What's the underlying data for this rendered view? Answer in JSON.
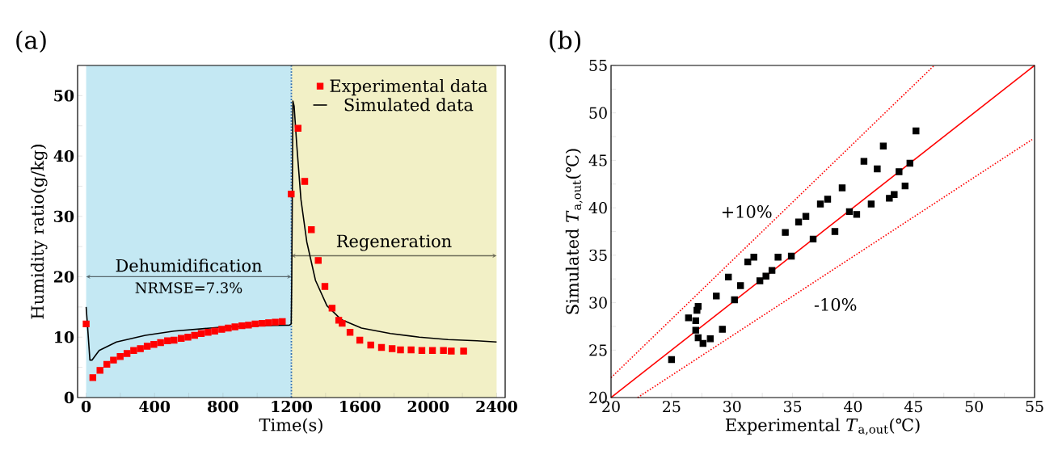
{
  "chart_data": [
    {
      "type": "scatter",
      "title": "(a)",
      "xlabel": "Time(s)",
      "ylabel": "Humidity ratio(g/kg)",
      "xlim": [
        -50,
        2450
      ],
      "ylim": [
        0,
        55
      ],
      "xticks": [
        0,
        {
          "value": 200,
          "label": null
        },
        400,
        {
          "value": 600,
          "label": null
        },
        800,
        {
          "value": 1000,
          "label": null
        },
        1200,
        {
          "value": 1400,
          "label": null
        },
        1600,
        {
          "value": 1800,
          "label": null
        },
        2000,
        {
          "value": 2200,
          "label": null
        },
        2400
      ],
      "yticks": [
        0,
        {
          "value": 5,
          "label": null
        },
        10,
        {
          "value": 15,
          "label": null
        },
        20,
        {
          "value": 25,
          "label": null
        },
        30,
        {
          "value": 35,
          "label": null
        },
        40,
        {
          "value": 45,
          "label": null
        },
        50
      ],
      "legend": "top right",
      "series": [
        {
          "name": "Experimental data",
          "marker": "square",
          "color": "#ff0000",
          "x": [
            0,
            39,
            81,
            121,
            160,
            199,
            239,
            278,
            317,
            357,
            396,
            435,
            476,
            514,
            556,
            595,
            634,
            673,
            713,
            752,
            793,
            831,
            870,
            911,
            949,
            988,
            1029,
            1067,
            1106,
            1147,
            1199,
            1239,
            1278,
            1317,
            1357,
            1396,
            1438,
            1477,
            1497,
            1543,
            1600,
            1664,
            1727,
            1789,
            1838,
            1900,
            1963,
            2025,
            2089,
            2135,
            2207
          ],
          "values": [
            12.2,
            3.3,
            4.5,
            5.5,
            6.2,
            6.8,
            7.3,
            7.8,
            8.1,
            8.5,
            8.8,
            9.1,
            9.4,
            9.5,
            9.8,
            10.0,
            10.3,
            10.6,
            10.8,
            11.0,
            11.3,
            11.5,
            11.7,
            11.9,
            12.0,
            12.2,
            12.3,
            12.4,
            12.5,
            12.6,
            33.7,
            44.6,
            35.8,
            27.8,
            22.7,
            18.4,
            14.8,
            12.8,
            12.3,
            10.8,
            9.5,
            8.7,
            8.3,
            8.1,
            7.9,
            7.9,
            7.8,
            7.8,
            7.8,
            7.7,
            7.7
          ]
        },
        {
          "name": "Simulated data",
          "type": "line",
          "marker": "none",
          "color": "#000000",
          "x": [
            0,
            8,
            22,
            34,
            76,
            177,
            346,
            514,
            767,
            1020,
            1189,
            1199,
            1202,
            1209,
            1216,
            1231,
            1256,
            1290,
            1341,
            1408,
            1492,
            1610,
            1779,
            1948,
            2116,
            2285,
            2400
          ],
          "values": [
            15.0,
            11.9,
            6.2,
            6.2,
            7.8,
            9.2,
            10.3,
            11.0,
            11.6,
            11.9,
            12.0,
            12.2,
            18.9,
            49.1,
            48.3,
            42.0,
            32.8,
            25.8,
            19.4,
            15.2,
            12.9,
            11.5,
            10.6,
            10.0,
            9.6,
            9.4,
            9.2
          ]
        }
      ],
      "ref_lines": [
        {
          "axis": "x",
          "value": 1200,
          "color": "#2b6cb0",
          "line_style": "dotted"
        }
      ],
      "bands": [
        {
          "axis": "x",
          "from": 0,
          "to": 1200,
          "label": "Dehumidification",
          "color": "#c4e8f3"
        },
        {
          "axis": "x",
          "from": 1200,
          "to": 2400,
          "label": "Regeneration",
          "color": "#f2f0c6"
        }
      ],
      "annotations": [
        "NRMSE=7.3%"
      ]
    },
    {
      "type": "scatter",
      "title": "(b)",
      "xlabel": "Experimental *T*$_{a,out}$(℃)",
      "ylabel": "Simulated *T*$_{a,out}$(℃)",
      "xlim": [
        20,
        55
      ],
      "ylim": [
        20,
        55
      ],
      "xticks": [
        20,
        {
          "value": 22.5,
          "label": null
        },
        25,
        {
          "value": 27.5,
          "label": null
        },
        30,
        {
          "value": 32.5,
          "label": null
        },
        35,
        {
          "value": 37.5,
          "label": null
        },
        40,
        {
          "value": 42.5,
          "label": null
        },
        45,
        {
          "value": 47.5,
          "label": null
        },
        50,
        {
          "value": 52.5,
          "label": null
        },
        55
      ],
      "yticks": [
        20,
        {
          "value": 22.5,
          "label": null
        },
        25,
        {
          "value": 27.5,
          "label": null
        },
        30,
        {
          "value": 32.5,
          "label": null
        },
        35,
        {
          "value": 37.5,
          "label": null
        },
        40,
        {
          "value": 42.5,
          "label": null
        },
        45,
        {
          "value": 47.5,
          "label": null
        },
        50,
        {
          "value": 52.5,
          "label": null
        },
        55
      ],
      "series": [
        {
          "marker": "square",
          "color": "#000000",
          "x": [
            25.0,
            26.4,
            27.0,
            27.0,
            27.1,
            27.2,
            27.2,
            27.6,
            28.2,
            28.7,
            29.2,
            29.7,
            30.2,
            30.7,
            31.3,
            31.8,
            32.3,
            32.8,
            33.3,
            33.8,
            34.4,
            34.9,
            35.5,
            36.1,
            36.7,
            37.3,
            37.9,
            38.5,
            39.1,
            39.7,
            40.3,
            40.9,
            41.5,
            42.0,
            42.5,
            43.0,
            43.4,
            43.8,
            44.3,
            44.7,
            45.2
          ],
          "values": [
            24.0,
            28.4,
            28.1,
            27.1,
            29.2,
            29.6,
            26.3,
            25.7,
            26.2,
            30.7,
            27.2,
            32.7,
            30.3,
            31.8,
            34.3,
            34.8,
            32.3,
            32.8,
            33.4,
            34.8,
            37.4,
            34.9,
            38.5,
            39.1,
            36.7,
            40.4,
            40.9,
            37.5,
            42.1,
            39.6,
            39.3,
            44.9,
            40.4,
            44.1,
            46.5,
            41.0,
            41.4,
            43.8,
            42.3,
            44.7,
            48.1
          ]
        },
        {
          "type": "line",
          "color": "#ff0000",
          "line_style": "solid",
          "x": [
            20,
            55
          ],
          "values": [
            20,
            55
          ]
        },
        {
          "type": "line",
          "color": "#ff0000",
          "line_style": "dotted",
          "x": [
            20,
            46.7
          ],
          "values": [
            22.1,
            55
          ]
        },
        {
          "type": "line",
          "color": "#ff0000",
          "line_style": "dotted",
          "x": [
            22.2,
            54.8
          ],
          "values": [
            20,
            47.2
          ]
        }
      ],
      "annotations": [
        "+10%",
        "-10%"
      ]
    }
  ]
}
